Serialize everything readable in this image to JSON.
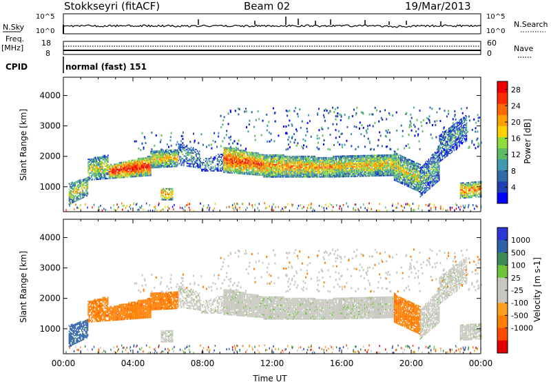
{
  "header": {
    "station": "Stokkseyri (fitACF)",
    "beam": "Beam 02",
    "date": "19/Mar/2013"
  },
  "nsky_panel": {
    "left_label": "N.Sky",
    "right_label": "N.Search",
    "left_ticks": [
      "10^5",
      "10^0"
    ],
    "right_ticks": [
      "10^5",
      "10^0"
    ]
  },
  "freq_panel": {
    "left_label_line1": "Freq.",
    "left_label_line2": "[MHz]",
    "right_label": "Nave",
    "left_ticks": [
      "18",
      "8"
    ],
    "right_ticks": [
      "60",
      "0"
    ]
  },
  "cpid_panel": {
    "label": "CPID",
    "text": "normal (fast) 151"
  },
  "colors": {
    "power": [
      "#0000ff",
      "#1e3fb4",
      "#2e6aa8",
      "#3f9ab0",
      "#5fbc66",
      "#8ede3c",
      "#ffd100",
      "#ffa000",
      "#ff6a00",
      "#ff2a00",
      "#ee0000"
    ],
    "velocity": [
      "#2b38d8",
      "#2d62a8",
      "#3c8a56",
      "#6fc43c",
      "#c8c8c0",
      "#c8c8c0",
      "#ffa020",
      "#ff7f00",
      "#ff4a00",
      "#e00000"
    ]
  },
  "chart_data": [
    {
      "type": "heatmap",
      "name": "power",
      "ylabel": "Slant Range [km]",
      "ylim": [
        180,
        4600
      ],
      "xlim": [
        0,
        24
      ],
      "y_ticks": [
        "4000",
        "3000",
        "2000",
        "1000"
      ],
      "y_tick_values": [
        4000,
        3000,
        2000,
        1000
      ],
      "colorbar_label": "Power [dB]",
      "colorbar_ticks": [
        "28",
        "24",
        "20",
        "16",
        "12",
        "8",
        "4"
      ],
      "colorbar_values": [
        28,
        24,
        20,
        16,
        12,
        8,
        4
      ],
      "colorbar_range": [
        0,
        30
      ]
    },
    {
      "type": "heatmap",
      "name": "velocity",
      "ylabel": "Slant Range [km]",
      "xlabel": "Time UT",
      "ylim": [
        180,
        4600
      ],
      "xlim": [
        0,
        24
      ],
      "x_ticks": [
        "00:00",
        "04:00",
        "08:00",
        "12:00",
        "16:00",
        "20:00",
        "00:00"
      ],
      "x_tick_values": [
        0,
        4,
        8,
        12,
        16,
        20,
        24
      ],
      "y_ticks": [
        "4000",
        "3000",
        "2000",
        "1000"
      ],
      "y_tick_values": [
        4000,
        3000,
        2000,
        1000
      ],
      "colorbar_label": "Velocity [m s-1]",
      "colorbar_ticks": [
        "1000",
        "500",
        "100",
        "25",
        "-25",
        "-100",
        "-500",
        "-1000"
      ]
    }
  ]
}
